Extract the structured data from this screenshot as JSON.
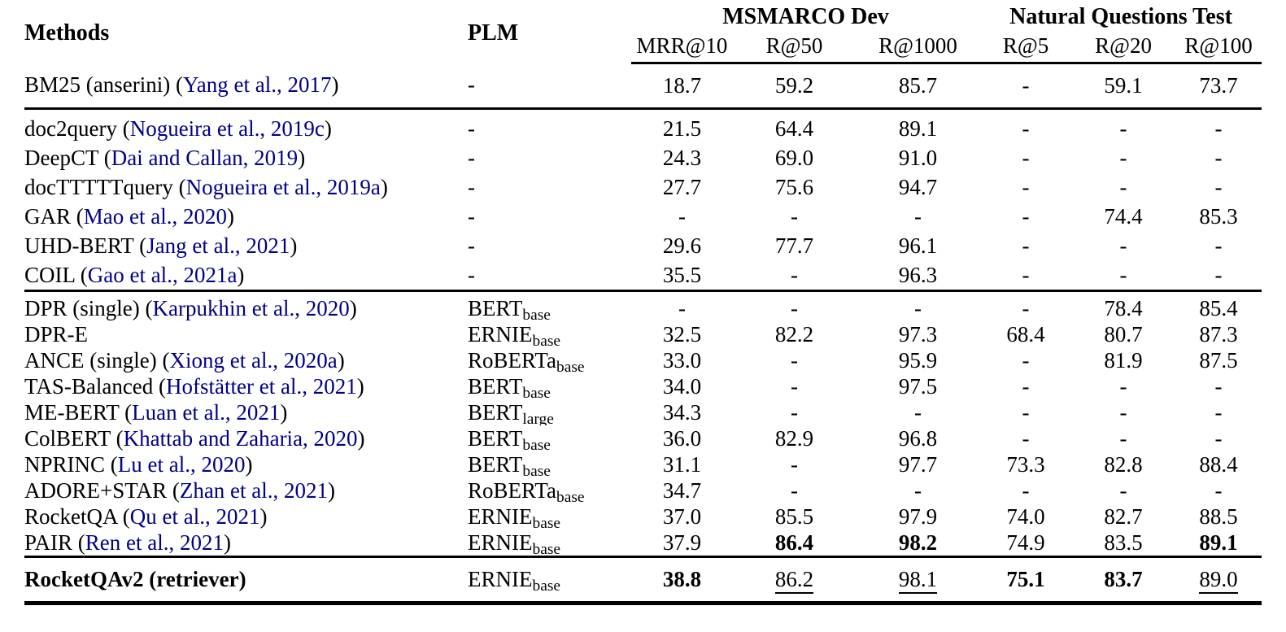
{
  "link_color": "#00008B",
  "header": {
    "methods": "Methods",
    "plm": "PLM",
    "groups": [
      {
        "label": "MSMARCO Dev",
        "columns": [
          "MRR@10",
          "R@50",
          "R@1000"
        ]
      },
      {
        "label": "Natural Questions Test",
        "columns": [
          "R@5",
          "R@20",
          "R@100"
        ]
      }
    ]
  },
  "sections": [
    {
      "rows": [
        {
          "method": {
            "pre": "BM25 (anserini) (",
            "cite": "Yang et al., 2017",
            "post": ")"
          },
          "bold": false,
          "plm": null,
          "values": [
            {
              "t": "18.7"
            },
            {
              "t": "59.2"
            },
            {
              "t": "85.7"
            },
            {
              "t": "-"
            },
            {
              "t": "59.1"
            },
            {
              "t": "73.7"
            }
          ]
        }
      ]
    },
    {
      "rows": [
        {
          "method": {
            "pre": "doc2query (",
            "cite": "Nogueira et al., 2019c",
            "post": ")"
          },
          "bold": false,
          "plm": null,
          "values": [
            {
              "t": "21.5"
            },
            {
              "t": "64.4"
            },
            {
              "t": "89.1"
            },
            {
              "t": "-"
            },
            {
              "t": "-"
            },
            {
              "t": "-"
            }
          ]
        },
        {
          "method": {
            "pre": "DeepCT (",
            "cite": "Dai and Callan, 2019",
            "post": ")"
          },
          "bold": false,
          "plm": null,
          "values": [
            {
              "t": "24.3"
            },
            {
              "t": "69.0"
            },
            {
              "t": "91.0"
            },
            {
              "t": "-"
            },
            {
              "t": "-"
            },
            {
              "t": "-"
            }
          ]
        },
        {
          "method": {
            "pre": "docTTTTTquery (",
            "cite": "Nogueira et al., 2019a",
            "post": ")"
          },
          "bold": false,
          "plm": null,
          "values": [
            {
              "t": "27.7"
            },
            {
              "t": "75.6"
            },
            {
              "t": "94.7"
            },
            {
              "t": "-"
            },
            {
              "t": "-"
            },
            {
              "t": "-"
            }
          ]
        },
        {
          "method": {
            "pre": "GAR (",
            "cite": "Mao et al., 2020",
            "post": ")"
          },
          "bold": false,
          "plm": null,
          "values": [
            {
              "t": "-"
            },
            {
              "t": "-"
            },
            {
              "t": "-"
            },
            {
              "t": "-"
            },
            {
              "t": "74.4"
            },
            {
              "t": "85.3"
            }
          ]
        },
        {
          "method": {
            "pre": "UHD-BERT (",
            "cite": "Jang et al., 2021",
            "post": ")"
          },
          "bold": false,
          "plm": null,
          "values": [
            {
              "t": "29.6"
            },
            {
              "t": "77.7"
            },
            {
              "t": "96.1"
            },
            {
              "t": "-"
            },
            {
              "t": "-"
            },
            {
              "t": "-"
            }
          ]
        },
        {
          "method": {
            "pre": "COIL (",
            "cite": "Gao et al., 2021a",
            "post": ")"
          },
          "bold": false,
          "plm": null,
          "values": [
            {
              "t": "35.5"
            },
            {
              "t": "-"
            },
            {
              "t": "96.3"
            },
            {
              "t": "-"
            },
            {
              "t": "-"
            },
            {
              "t": "-"
            }
          ]
        }
      ]
    },
    {
      "rows": [
        {
          "method": {
            "pre": "DPR (single) (",
            "cite": "Karpukhin et al., 2020",
            "post": ")"
          },
          "bold": false,
          "plm": {
            "name": "BERT",
            "sub": "base"
          },
          "values": [
            {
              "t": "-"
            },
            {
              "t": "-"
            },
            {
              "t": "-"
            },
            {
              "t": "-"
            },
            {
              "t": "78.4"
            },
            {
              "t": "85.4"
            }
          ]
        },
        {
          "method": {
            "pre": "DPR-E",
            "cite": "",
            "post": ""
          },
          "bold": false,
          "plm": {
            "name": "ERNIE",
            "sub": "base"
          },
          "values": [
            {
              "t": "32.5"
            },
            {
              "t": "82.2"
            },
            {
              "t": "97.3"
            },
            {
              "t": "68.4"
            },
            {
              "t": "80.7"
            },
            {
              "t": "87.3"
            }
          ]
        },
        {
          "method": {
            "pre": "ANCE (single) (",
            "cite": "Xiong et al., 2020a",
            "post": ")"
          },
          "bold": false,
          "plm": {
            "name": "RoBERTa",
            "sub": "base"
          },
          "values": [
            {
              "t": "33.0"
            },
            {
              "t": "-"
            },
            {
              "t": "95.9"
            },
            {
              "t": "-"
            },
            {
              "t": "81.9"
            },
            {
              "t": "87.5"
            }
          ]
        },
        {
          "method": {
            "pre": "TAS-Balanced (",
            "cite": "Hofstätter et al., 2021",
            "post": ")"
          },
          "bold": false,
          "plm": {
            "name": "BERT",
            "sub": "base"
          },
          "values": [
            {
              "t": "34.0"
            },
            {
              "t": "-"
            },
            {
              "t": "97.5"
            },
            {
              "t": "-"
            },
            {
              "t": "-"
            },
            {
              "t": "-"
            }
          ]
        },
        {
          "method": {
            "pre": "ME-BERT (",
            "cite": "Luan et al., 2021",
            "post": ")"
          },
          "bold": false,
          "plm": {
            "name": "BERT",
            "sub": "large"
          },
          "values": [
            {
              "t": "34.3"
            },
            {
              "t": "-"
            },
            {
              "t": "-"
            },
            {
              "t": "-"
            },
            {
              "t": "-"
            },
            {
              "t": "-"
            }
          ]
        },
        {
          "method": {
            "pre": "ColBERT (",
            "cite": "Khattab and Zaharia, 2020",
            "post": ")"
          },
          "bold": false,
          "plm": {
            "name": "BERT",
            "sub": "base"
          },
          "values": [
            {
              "t": "36.0"
            },
            {
              "t": "82.9"
            },
            {
              "t": "96.8"
            },
            {
              "t": "-"
            },
            {
              "t": "-"
            },
            {
              "t": "-"
            }
          ]
        },
        {
          "method": {
            "pre": "NPRINC (",
            "cite": "Lu et al., 2020",
            "post": ")"
          },
          "bold": false,
          "plm": {
            "name": "BERT",
            "sub": "base"
          },
          "values": [
            {
              "t": "31.1"
            },
            {
              "t": "-"
            },
            {
              "t": "97.7"
            },
            {
              "t": "73.3"
            },
            {
              "t": "82.8"
            },
            {
              "t": "88.4"
            }
          ]
        },
        {
          "method": {
            "pre": "ADORE+STAR (",
            "cite": "Zhan et al., 2021",
            "post": ")"
          },
          "bold": false,
          "plm": {
            "name": "RoBERTa",
            "sub": "base"
          },
          "values": [
            {
              "t": "34.7"
            },
            {
              "t": "-"
            },
            {
              "t": "-"
            },
            {
              "t": "-"
            },
            {
              "t": "-"
            },
            {
              "t": "-"
            }
          ]
        },
        {
          "method": {
            "pre": "RocketQA (",
            "cite": "Qu et al., 2021",
            "post": ")"
          },
          "bold": false,
          "plm": {
            "name": "ERNIE",
            "sub": "base"
          },
          "values": [
            {
              "t": "37.0"
            },
            {
              "t": "85.5"
            },
            {
              "t": "97.9"
            },
            {
              "t": "74.0"
            },
            {
              "t": "82.7"
            },
            {
              "t": "88.5"
            }
          ]
        },
        {
          "method": {
            "pre": "PAIR (",
            "cite": "Ren et al., 2021",
            "post": ")"
          },
          "bold": false,
          "plm": {
            "name": "ERNIE",
            "sub": "base"
          },
          "values": [
            {
              "t": "37.9",
              "s": "u"
            },
            {
              "t": "86.4",
              "s": "b"
            },
            {
              "t": "98.2",
              "s": "b"
            },
            {
              "t": "74.9",
              "s": "u"
            },
            {
              "t": "83.5",
              "s": "u"
            },
            {
              "t": "89.1",
              "s": "b"
            }
          ]
        }
      ]
    },
    {
      "rows": [
        {
          "method": {
            "pre": "RocketQAv2 (retriever)",
            "cite": "",
            "post": ""
          },
          "bold": true,
          "plm": {
            "name": "ERNIE",
            "sub": "base"
          },
          "values": [
            {
              "t": "38.8",
              "s": "b"
            },
            {
              "t": "86.2",
              "s": "u"
            },
            {
              "t": "98.1",
              "s": "u"
            },
            {
              "t": "75.1",
              "s": "b"
            },
            {
              "t": "83.7",
              "s": "b"
            },
            {
              "t": "89.0",
              "s": "u"
            }
          ]
        }
      ]
    }
  ]
}
